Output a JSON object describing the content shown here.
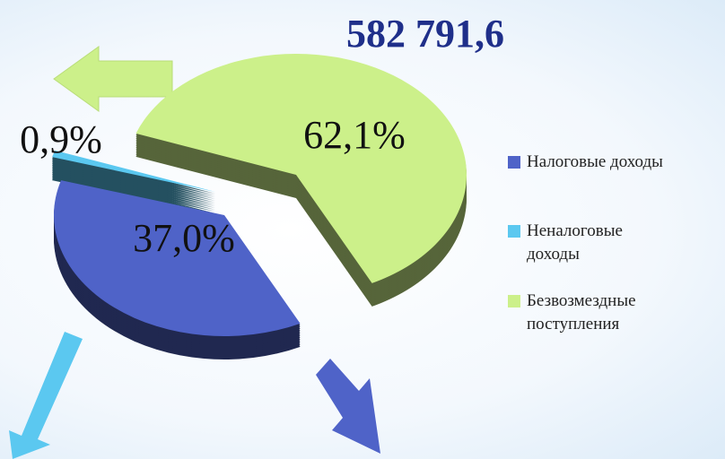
{
  "chart_data": {
    "type": "pie",
    "title": "582 791,6",
    "categories": [
      "Налоговые доходы",
      "Неналоговые доходы",
      "Безвозмездные поступления"
    ],
    "values": [
      37.0,
      0.9,
      62.1
    ],
    "value_labels": [
      "37,0%",
      "0,9%",
      "62,1%"
    ],
    "colors": [
      "#4f63c8",
      "#5bc8f0",
      "#ccf08a"
    ]
  }
}
